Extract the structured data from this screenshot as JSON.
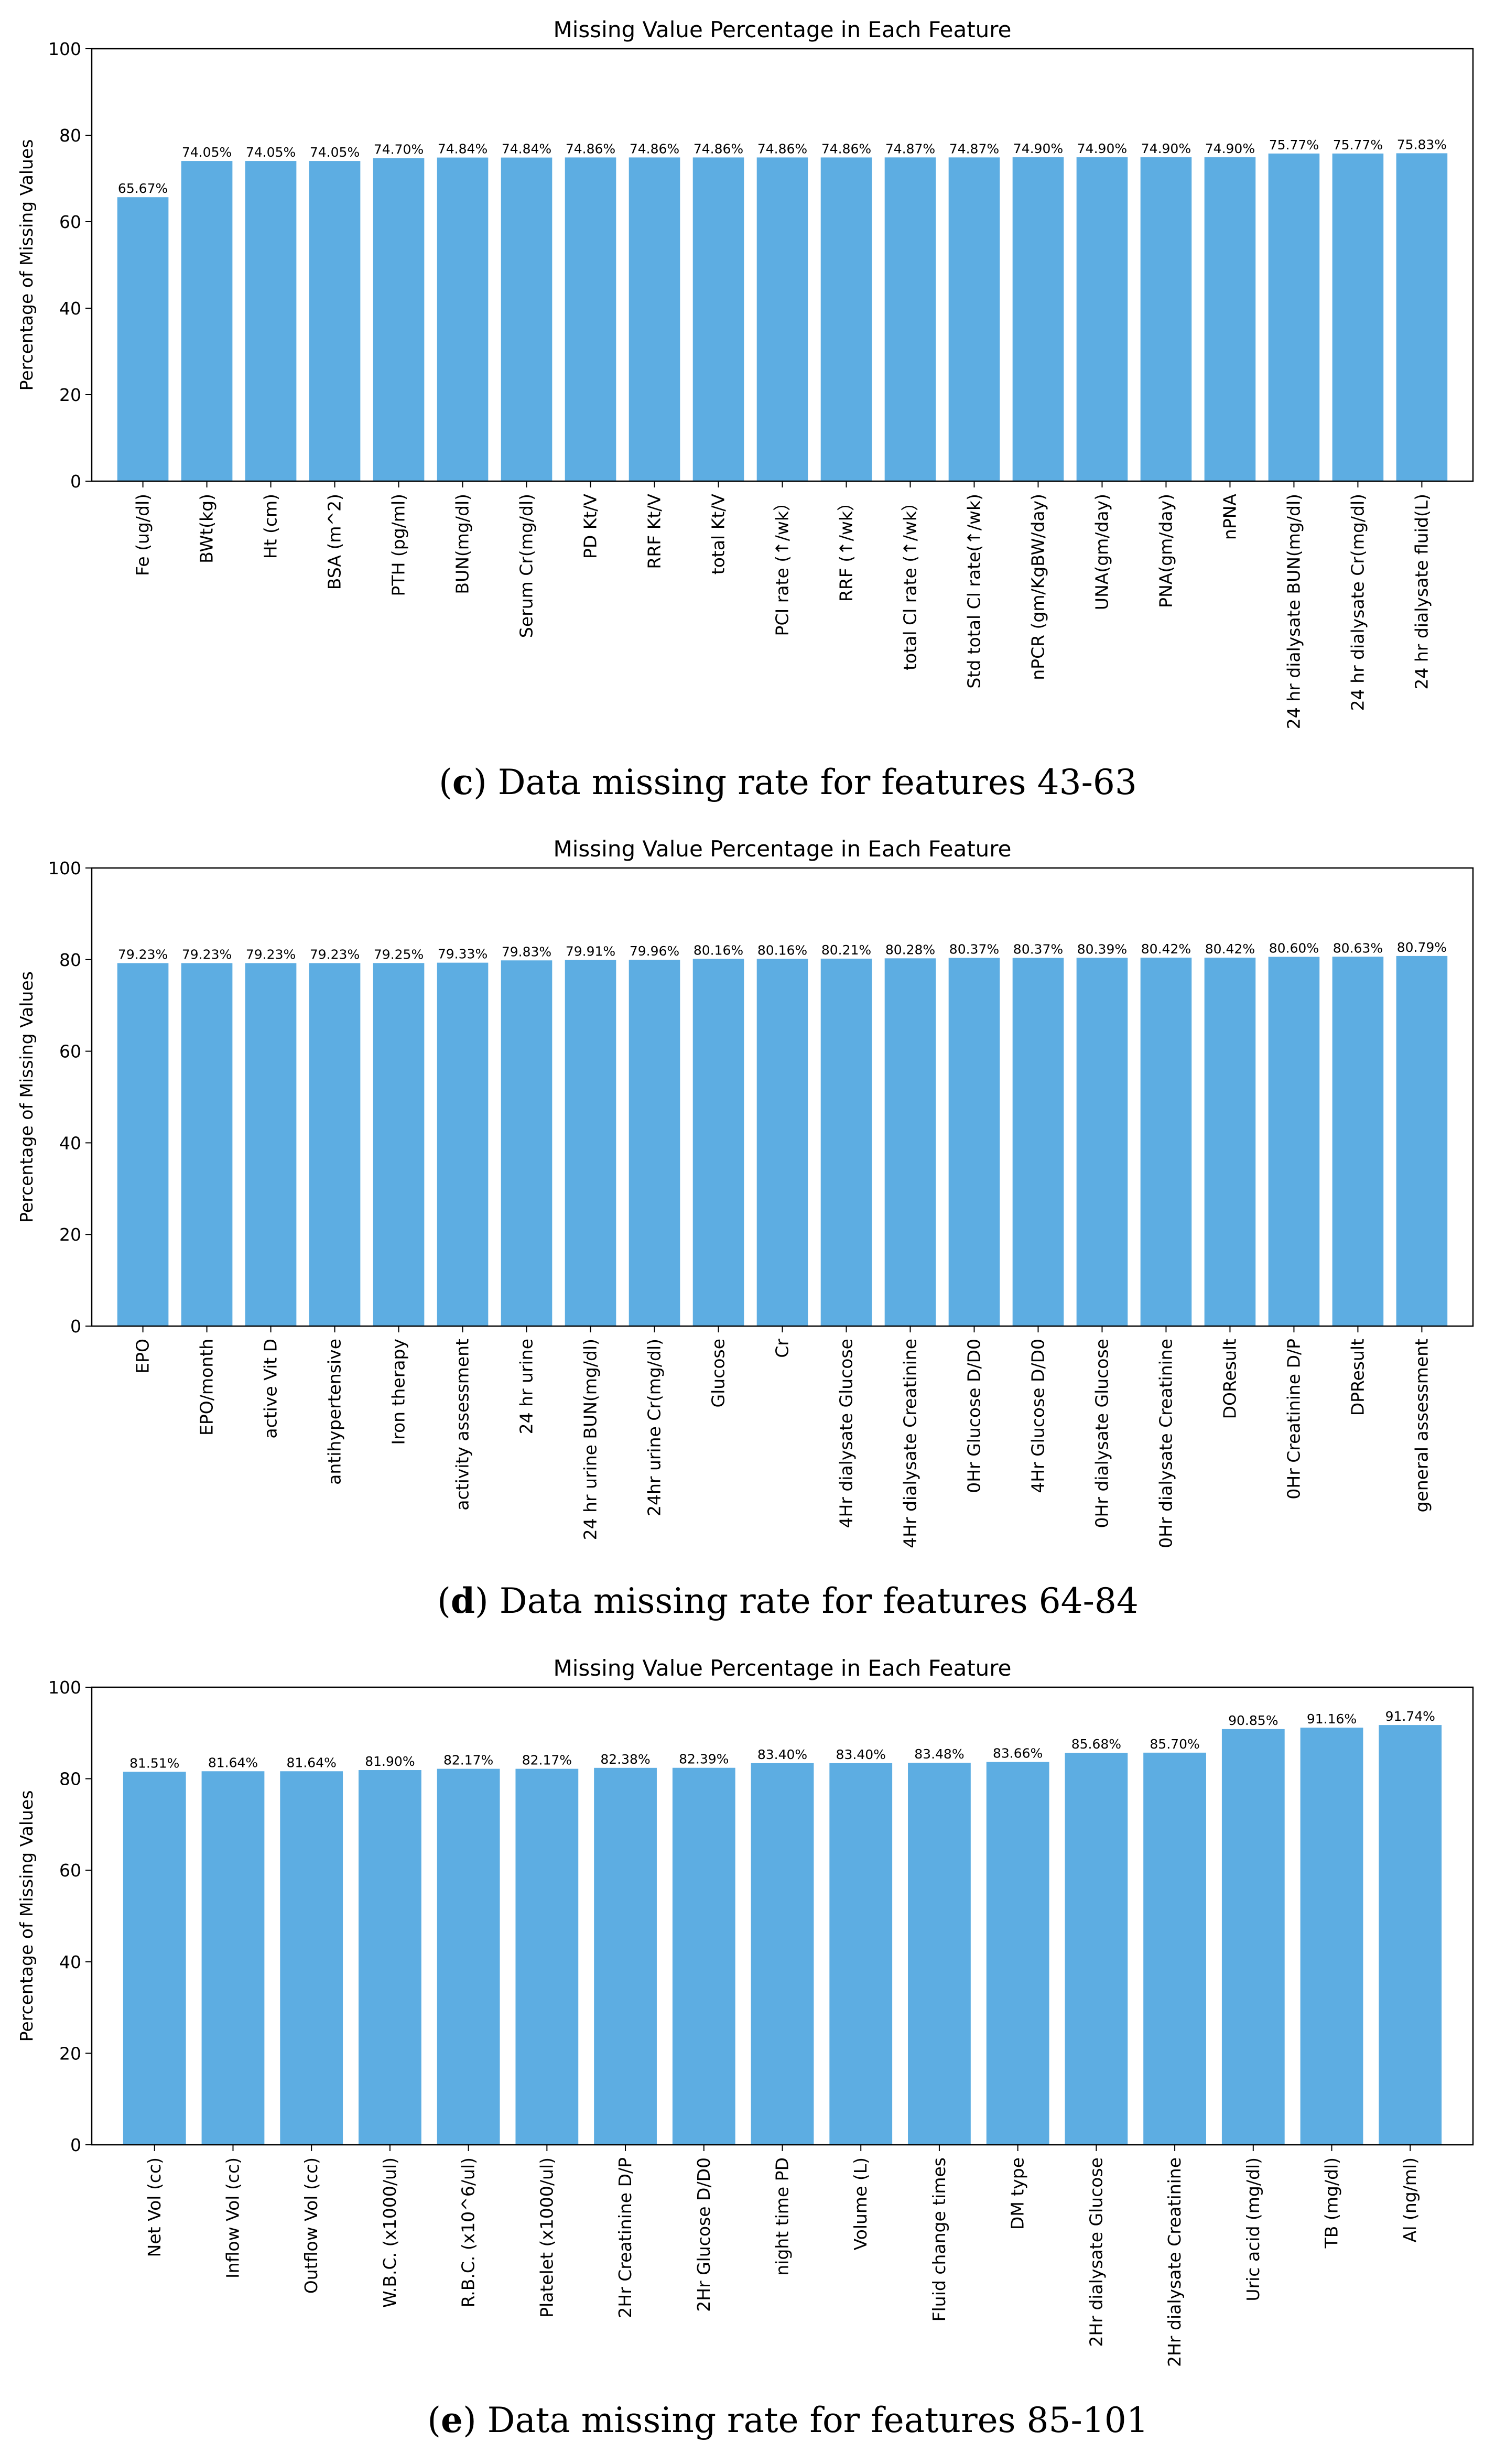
{
  "colors": {
    "bar": "#5dade2",
    "axis": "#000000",
    "background": "#ffffff"
  },
  "chart_data": [
    {
      "type": "bar",
      "title": "Missing Value Percentage in Each Feature",
      "xlabel": "",
      "ylabel": "Percentage of Missing Values",
      "ylim": [
        0,
        100
      ],
      "yticks": [
        0,
        20,
        40,
        60,
        80,
        100
      ],
      "grid": false,
      "caption": {
        "letter": "c",
        "text": " Data missing rate for features 43-63",
        "open": "(",
        "close": ")"
      },
      "categories": [
        "Fe (ug/dl)",
        "BWt(kg)",
        "Ht (cm)",
        "BSA (m^2)",
        "PTH (pg/ml)",
        "BUN(mg/dl)",
        "Serum Cr(mg/dl)",
        "PD Kt/V",
        "RRF Kt/V",
        "total Kt/V",
        "PCI rate (↑/wk）",
        "RRF (↑/wk）",
        "total Cl rate (↑/wk）",
        "Std total Cl rate(↑/wk)",
        "nPCR (gm/KgBW/day)",
        "UNA(gm/day)",
        "PNA(gm/day)",
        "nPNA",
        "24 hr dialysate BUN(mg/dl)",
        "24 hr dialysate Cr(mg/dl)",
        "24 hr dialysate fluid(L)"
      ],
      "values": [
        65.67,
        74.05,
        74.05,
        74.05,
        74.7,
        74.84,
        74.84,
        74.86,
        74.86,
        74.86,
        74.86,
        74.86,
        74.87,
        74.87,
        74.9,
        74.9,
        74.9,
        74.9,
        75.77,
        75.77,
        75.83
      ],
      "value_labels": [
        "65.67%",
        "74.05%",
        "74.05%",
        "74.05%",
        "74.70%",
        "74.84%",
        "74.84%",
        "74.86%",
        "74.86%",
        "74.86%",
        "74.86%",
        "74.86%",
        "74.87%",
        "74.87%",
        "74.90%",
        "74.90%",
        "74.90%",
        "74.90%",
        "75.77%",
        "75.77%",
        "75.83%"
      ]
    },
    {
      "type": "bar",
      "title": "Missing Value Percentage in Each Feature",
      "xlabel": "",
      "ylabel": "Percentage of Missing Values",
      "ylim": [
        0,
        100
      ],
      "yticks": [
        0,
        20,
        40,
        60,
        80,
        100
      ],
      "grid": false,
      "caption": {
        "letter": "d",
        "text": " Data missing rate for features 64-84",
        "open": "(",
        "close": ")"
      },
      "categories": [
        "EPO",
        "EPO/month",
        "active Vit D",
        "antihypertensive",
        "Iron therapy",
        "activity assessment",
        "24 hr urine",
        "24 hr urine BUN(mg/dl)",
        "24hr urine Cr(mg/dl)",
        "Glucose",
        "Cr",
        "4Hr dialysate Glucose",
        "4Hr dialysate Creatinine",
        "0Hr Glucose D/D0",
        "4Hr Glucose D/D0",
        "0Hr dialysate Glucose",
        "0Hr dialysate Creatinine",
        "DOResult",
        "0Hr Creatinine D/P",
        "DPResult",
        "general assessment"
      ],
      "values": [
        79.23,
        79.23,
        79.23,
        79.23,
        79.25,
        79.33,
        79.83,
        79.91,
        79.96,
        80.16,
        80.16,
        80.21,
        80.28,
        80.37,
        80.37,
        80.39,
        80.42,
        80.42,
        80.6,
        80.63,
        80.79
      ],
      "value_labels": [
        "79.23%",
        "79.23%",
        "79.23%",
        "79.23%",
        "79.25%",
        "79.33%",
        "79.83%",
        "79.91%",
        "79.96%",
        "80.16%",
        "80.16%",
        "80.21%",
        "80.28%",
        "80.37%",
        "80.37%",
        "80.39%",
        "80.42%",
        "80.42%",
        "80.60%",
        "80.63%",
        "80.79%"
      ]
    },
    {
      "type": "bar",
      "title": "Missing Value Percentage in Each Feature",
      "xlabel": "",
      "ylabel": "Percentage of Missing Values",
      "ylim": [
        0,
        100
      ],
      "yticks": [
        0,
        20,
        40,
        60,
        80,
        100
      ],
      "grid": false,
      "caption": {
        "letter": "e",
        "text": " Data missing rate for features 85-101",
        "open": "(",
        "close": ")"
      },
      "categories": [
        "Net Vol (cc)",
        "Inflow Vol (cc)",
        "Outflow Vol (cc)",
        "W.B.C. (x1000/ul)",
        "R.B.C. (x10^6/ul)",
        "Platelet (x1000/ul)",
        "2Hr Creatinine D/P",
        "2Hr Glucose D/D0",
        "night time PD",
        "Volume (L)",
        "Fluid change times",
        "DM type",
        "2Hr dialysate Glucose",
        "2Hr dialysate Creatinine",
        "Uric acid (mg/dl)",
        "TB (mg/dl)",
        "Al (ng/ml)"
      ],
      "values": [
        81.51,
        81.64,
        81.64,
        81.9,
        82.17,
        82.17,
        82.38,
        82.39,
        83.4,
        83.4,
        83.48,
        83.66,
        85.68,
        85.7,
        90.85,
        91.16,
        91.74
      ],
      "value_labels": [
        "81.51%",
        "81.64%",
        "81.64%",
        "81.90%",
        "82.17%",
        "82.17%",
        "82.38%",
        "82.39%",
        "83.40%",
        "83.40%",
        "83.48%",
        "83.66%",
        "85.68%",
        "85.70%",
        "90.85%",
        "91.16%",
        "91.74%"
      ]
    }
  ]
}
